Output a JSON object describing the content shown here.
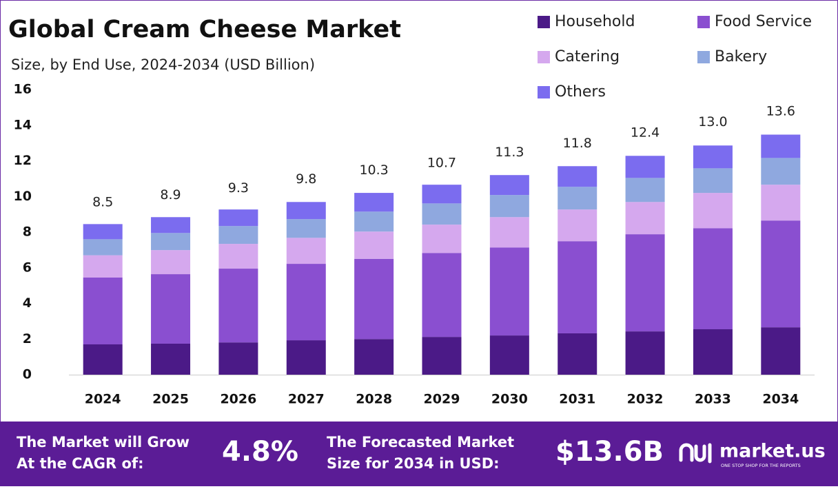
{
  "chart_data": {
    "type": "stacked-bar",
    "title": "Global Cream Cheese Market",
    "subtitle": "Size, by End Use, 2024-2034 (USD Billion)",
    "categories": [
      "2024",
      "2025",
      "2026",
      "2027",
      "2028",
      "2029",
      "2030",
      "2031",
      "2032",
      "2033",
      "2034"
    ],
    "series": [
      {
        "name": "Household",
        "color": "#4b1a87",
        "values": [
          1.7,
          1.74,
          1.81,
          1.93,
          2.0,
          2.12,
          2.2,
          2.32,
          2.43,
          2.55,
          2.66
        ]
      },
      {
        "name": "Food Service",
        "color": "#8a4fd0",
        "values": [
          3.75,
          3.9,
          4.14,
          4.29,
          4.5,
          4.71,
          4.94,
          5.17,
          5.45,
          5.67,
          5.99
        ]
      },
      {
        "name": "Catering",
        "color": "#d5a8ee",
        "values": [
          1.25,
          1.35,
          1.39,
          1.46,
          1.53,
          1.59,
          1.7,
          1.78,
          1.81,
          1.98,
          2.01
        ]
      },
      {
        "name": "Bakery",
        "color": "#8fa8df",
        "values": [
          0.9,
          0.96,
          1.0,
          1.05,
          1.12,
          1.19,
          1.24,
          1.27,
          1.35,
          1.38,
          1.5
        ]
      },
      {
        "name": "Others",
        "color": "#7b6cef",
        "values": [
          0.85,
          0.89,
          0.93,
          0.96,
          1.05,
          1.05,
          1.12,
          1.16,
          1.24,
          1.28,
          1.31
        ]
      }
    ],
    "totals": [
      8.5,
      8.9,
      9.3,
      9.8,
      10.3,
      10.7,
      11.3,
      11.8,
      12.4,
      13.0,
      13.6
    ],
    "total_labels": [
      "8.5",
      "8.9",
      "9.3",
      "9.8",
      "10.3",
      "10.7",
      "11.3",
      "11.8",
      "12.4",
      "13.0",
      "13.6"
    ],
    "ylim": [
      0,
      16
    ],
    "yticks": [
      0,
      2,
      4,
      6,
      8,
      10,
      12,
      14,
      16
    ],
    "grid": false
  },
  "footer": {
    "cagr_text": [
      "The Market will Grow",
      "At the CAGR of:"
    ],
    "cagr_value": "4.8%",
    "forecast_text": [
      "The Forecasted Market",
      "Size for 2034 in USD:"
    ],
    "forecast_value": "$13.6B",
    "brand": "market.us",
    "tagline": "ONE STOP SHOP FOR THE REPORTS"
  }
}
